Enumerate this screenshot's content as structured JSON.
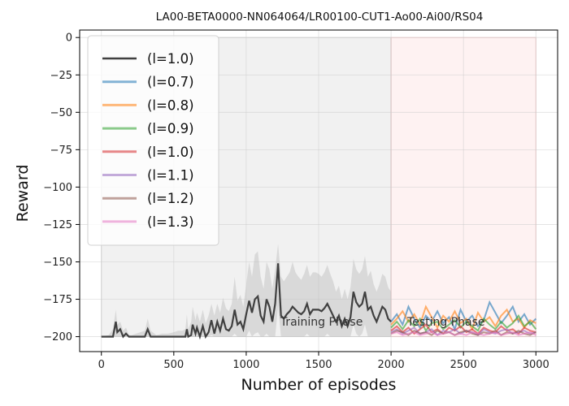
{
  "chart_data": {
    "type": "line",
    "title": "LA00-BETA0000-NN064064/LR00100-CUT1-Ao00-Ai00/RS04",
    "xlabel": "Number of episodes",
    "ylabel": "Reward",
    "xlim": [
      -150,
      3150
    ],
    "ylim": [
      -210,
      5
    ],
    "xticks": [
      0,
      500,
      1000,
      1500,
      2000,
      2500,
      3000
    ],
    "yticks": [
      0,
      -25,
      -50,
      -75,
      -100,
      -125,
      -150,
      -175,
      -200
    ],
    "grid": true,
    "legend_position": "top-left",
    "phases": [
      {
        "label": "Training Phase",
        "x_start": 0,
        "x_end": 2000,
        "color": "#e6e6e6",
        "label_x": 1520,
        "label_y": -190
      },
      {
        "label": "Testing Phase",
        "x_start": 2000,
        "x_end": 3000,
        "color": "#fde8e8",
        "label_x": 2380,
        "label_y": -190
      }
    ],
    "training_series": {
      "name": "(l=1.0)",
      "color": "#404040",
      "x": [
        0,
        50,
        80,
        100,
        110,
        130,
        150,
        170,
        190,
        210,
        240,
        270,
        300,
        320,
        340,
        380,
        420,
        460,
        500,
        530,
        560,
        580,
        590,
        600,
        620,
        630,
        650,
        660,
        680,
        700,
        720,
        740,
        760,
        780,
        800,
        820,
        840,
        860,
        880,
        900,
        920,
        940,
        960,
        980,
        1000,
        1020,
        1040,
        1060,
        1080,
        1100,
        1120,
        1140,
        1160,
        1180,
        1200,
        1220,
        1240,
        1260,
        1280,
        1300,
        1320,
        1340,
        1360,
        1380,
        1400,
        1420,
        1440,
        1460,
        1480,
        1500,
        1520,
        1540,
        1560,
        1580,
        1600,
        1620,
        1640,
        1660,
        1680,
        1700,
        1720,
        1740,
        1760,
        1780,
        1800,
        1820,
        1840,
        1860,
        1880,
        1900,
        1920,
        1940,
        1960,
        1980,
        2000
      ],
      "y": [
        -200,
        -200,
        -200,
        -190,
        -197,
        -195,
        -200,
        -198,
        -200,
        -200,
        -200,
        -200,
        -200,
        -195,
        -200,
        -200,
        -200,
        -200,
        -200,
        -200,
        -200,
        -200,
        -195,
        -200,
        -199,
        -192,
        -198,
        -194,
        -200,
        -193,
        -200,
        -197,
        -189,
        -198,
        -190,
        -196,
        -188,
        -195,
        -196,
        -193,
        -182,
        -192,
        -190,
        -195,
        -185,
        -176,
        -184,
        -175,
        -173,
        -186,
        -190,
        -175,
        -180,
        -190,
        -178,
        -151,
        -186,
        -188,
        -185,
        -183,
        -180,
        -182,
        -184,
        -185,
        -183,
        -178,
        -185,
        -182,
        -182,
        -182,
        -183,
        -181,
        -178,
        -182,
        -186,
        -190,
        -186,
        -193,
        -188,
        -193,
        -187,
        -170,
        -177,
        -180,
        -178,
        -170,
        -182,
        -180,
        -186,
        -190,
        -185,
        -180,
        -182,
        -188,
        -190
      ],
      "band_upper": [
        -200,
        -199,
        -195,
        -182,
        -192,
        -190,
        -196,
        -194,
        -199,
        -199,
        -198,
        -197,
        -196,
        -188,
        -196,
        -199,
        -198,
        -198,
        -197,
        -196,
        -196,
        -195,
        -185,
        -195,
        -190,
        -180,
        -189,
        -184,
        -190,
        -182,
        -191,
        -186,
        -178,
        -186,
        -178,
        -184,
        -174,
        -181,
        -183,
        -178,
        -160,
        -176,
        -172,
        -180,
        -165,
        -150,
        -160,
        -145,
        -143,
        -160,
        -168,
        -150,
        -155,
        -168,
        -155,
        -138,
        -160,
        -163,
        -160,
        -157,
        -150,
        -157,
        -160,
        -162,
        -158,
        -152,
        -160,
        -157,
        -157,
        -158,
        -160,
        -157,
        -152,
        -158,
        -163,
        -170,
        -166,
        -175,
        -168,
        -175,
        -167,
        -148,
        -155,
        -158,
        -155,
        -146,
        -160,
        -156,
        -165,
        -170,
        -165,
        -158,
        -160,
        -167,
        -170
      ],
      "band_lower": [
        -200,
        -200,
        -200,
        -200,
        -200,
        -200,
        -200,
        -200,
        -200,
        -200,
        -200,
        -200,
        -200,
        -200,
        -200,
        -200,
        -200,
        -200,
        -200,
        -200,
        -200,
        -200,
        -200,
        -200,
        -200,
        -200,
        -200,
        -200,
        -200,
        -200,
        -200,
        -200,
        -199,
        -200,
        -200,
        -200,
        -200,
        -200,
        -200,
        -200,
        -198,
        -200,
        -200,
        -200,
        -200,
        -196,
        -200,
        -198,
        -197,
        -200,
        -200,
        -198,
        -200,
        -200,
        -200,
        -180,
        -200,
        -200,
        -200,
        -200,
        -200,
        -200,
        -200,
        -200,
        -200,
        -198,
        -200,
        -200,
        -200,
        -200,
        -200,
        -200,
        -198,
        -200,
        -200,
        -200,
        -200,
        -200,
        -200,
        -200,
        -200,
        -192,
        -198,
        -200,
        -198,
        -192,
        -200,
        -200,
        -200,
        -200,
        -200,
        -200,
        -200,
        -200,
        -200
      ]
    },
    "testing_series": [
      {
        "name": "(l=0.7)",
        "color": "#1f77b4",
        "x": [
          2000,
          2040,
          2080,
          2120,
          2160,
          2200,
          2240,
          2280,
          2320,
          2360,
          2400,
          2440,
          2480,
          2520,
          2560,
          2600,
          2640,
          2680,
          2720,
          2760,
          2800,
          2840,
          2880,
          2920,
          2960,
          3000
        ],
        "y": [
          -190,
          -185,
          -192,
          -180,
          -188,
          -194,
          -186,
          -190,
          -183,
          -191,
          -187,
          -195,
          -182,
          -190,
          -186,
          -193,
          -189,
          -177,
          -184,
          -191,
          -186,
          -180,
          -190,
          -185,
          -192,
          -188
        ]
      },
      {
        "name": "(l=0.8)",
        "color": "#ff7f0e",
        "x": [
          2000,
          2040,
          2080,
          2120,
          2160,
          2200,
          2240,
          2280,
          2320,
          2360,
          2400,
          2440,
          2480,
          2520,
          2560,
          2600,
          2640,
          2680,
          2720,
          2760,
          2800,
          2840,
          2880,
          2920,
          2960,
          3000
        ],
        "y": [
          -192,
          -188,
          -183,
          -190,
          -185,
          -192,
          -180,
          -187,
          -194,
          -186,
          -190,
          -183,
          -191,
          -188,
          -195,
          -184,
          -190,
          -187,
          -193,
          -186,
          -182,
          -190,
          -188,
          -194,
          -189,
          -191
        ]
      },
      {
        "name": "(l=0.9)",
        "color": "#2ca02c",
        "x": [
          2000,
          2040,
          2080,
          2120,
          2160,
          2200,
          2240,
          2280,
          2320,
          2360,
          2400,
          2440,
          2480,
          2520,
          2560,
          2600,
          2640,
          2680,
          2720,
          2760,
          2800,
          2840,
          2880,
          2920,
          2960,
          3000
        ],
        "y": [
          -194,
          -190,
          -195,
          -189,
          -193,
          -188,
          -196,
          -191,
          -190,
          -195,
          -192,
          -189,
          -194,
          -190,
          -193,
          -196,
          -188,
          -192,
          -195,
          -190,
          -194,
          -191,
          -186,
          -193,
          -190,
          -195
        ]
      },
      {
        "name": "(l=1.0)",
        "color": "#d62728",
        "x": [
          2000,
          2040,
          2080,
          2120,
          2160,
          2200,
          2240,
          2280,
          2320,
          2360,
          2400,
          2440,
          2480,
          2520,
          2560,
          2600,
          2640,
          2680,
          2720,
          2760,
          2800,
          2840,
          2880,
          2920,
          2960,
          3000
        ],
        "y": [
          -196,
          -193,
          -197,
          -194,
          -198,
          -195,
          -192,
          -197,
          -195,
          -198,
          -194,
          -196,
          -193,
          -197,
          -195,
          -198,
          -194,
          -196,
          -197,
          -193,
          -196,
          -195,
          -198,
          -194,
          -196,
          -197
        ]
      },
      {
        "name": "(l=1.1)",
        "color": "#9467bd",
        "x": [
          2000,
          2040,
          2080,
          2120,
          2160,
          2200,
          2240,
          2280,
          2320,
          2360,
          2400,
          2440,
          2480,
          2520,
          2560,
          2600,
          2640,
          2680,
          2720,
          2760,
          2800,
          2840,
          2880,
          2920,
          2960,
          3000
        ],
        "y": [
          -197,
          -195,
          -198,
          -196,
          -194,
          -198,
          -197,
          -195,
          -199,
          -196,
          -197,
          -195,
          -198,
          -196,
          -197,
          -199,
          -195,
          -197,
          -198,
          -196,
          -195,
          -198,
          -197,
          -196,
          -198,
          -197
        ]
      },
      {
        "name": "(l=1.2)",
        "color": "#8c564b",
        "x": [
          2000,
          2040,
          2080,
          2120,
          2160,
          2200,
          2240,
          2280,
          2320,
          2360,
          2400,
          2440,
          2480,
          2520,
          2560,
          2600,
          2640,
          2680,
          2720,
          2760,
          2800,
          2840,
          2880,
          2920,
          2960,
          3000
        ],
        "y": [
          -198,
          -196,
          -197,
          -199,
          -196,
          -198,
          -197,
          -199,
          -196,
          -198,
          -197,
          -199,
          -197,
          -196,
          -198,
          -199,
          -197,
          -198,
          -196,
          -199,
          -197,
          -198,
          -196,
          -198,
          -199,
          -197
        ]
      },
      {
        "name": "(l=1.3)",
        "color": "#e377c2",
        "x": [
          2000,
          2040,
          2080,
          2120,
          2160,
          2200,
          2240,
          2280,
          2320,
          2360,
          2400,
          2440,
          2480,
          2520,
          2560,
          2600,
          2640,
          2680,
          2720,
          2760,
          2800,
          2840,
          2880,
          2920,
          2960,
          3000
        ],
        "y": [
          -198,
          -197,
          -199,
          -198,
          -197,
          -199,
          -198,
          -197,
          -199,
          -198,
          -197,
          -199,
          -198,
          -199,
          -197,
          -198,
          -199,
          -198,
          -197,
          -199,
          -198,
          -197,
          -199,
          -198,
          -197,
          -199
        ]
      }
    ],
    "legend_entries": [
      {
        "name": "(l=1.0)",
        "color": "#404040"
      },
      {
        "name": "(l=0.7)",
        "color": "#1f77b4"
      },
      {
        "name": "(l=0.8)",
        "color": "#ff7f0e"
      },
      {
        "name": "(l=0.9)",
        "color": "#2ca02c"
      },
      {
        "name": "(l=1.0)",
        "color": "#d62728"
      },
      {
        "name": "(l=1.1)",
        "color": "#9467bd"
      },
      {
        "name": "(l=1.2)",
        "color": "#8c564b"
      },
      {
        "name": "(l=1.3)",
        "color": "#e377c2"
      }
    ]
  }
}
